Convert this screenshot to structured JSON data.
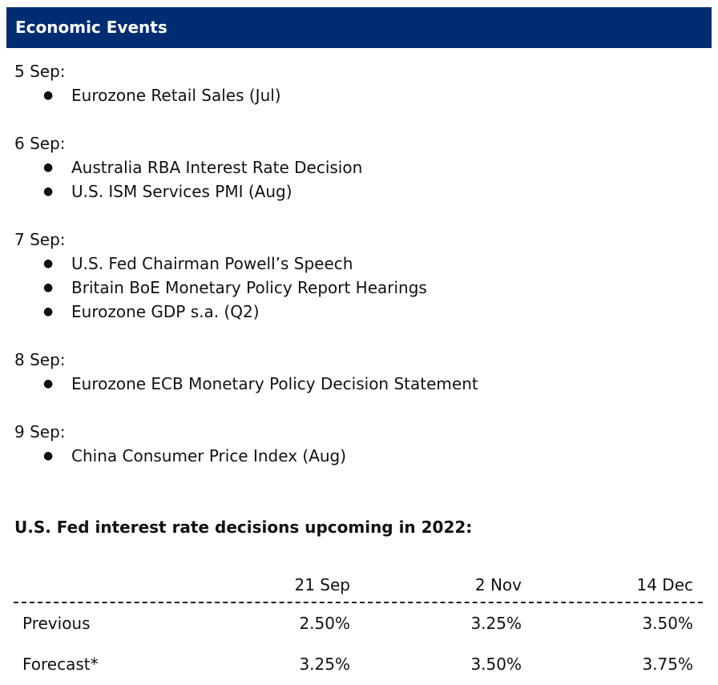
{
  "header": {
    "title": "Economic Events"
  },
  "events": [
    {
      "date": "5 Sep:",
      "items": [
        "Eurozone Retail Sales (Jul)"
      ]
    },
    {
      "date": "6 Sep:",
      "items": [
        "Australia RBA Interest Rate Decision",
        "U.S. ISM Services PMI (Aug)"
      ]
    },
    {
      "date": "7 Sep:",
      "items": [
        "U.S. Fed Chairman Powell’s Speech",
        "Britain BoE Monetary Policy Report Hearings",
        "Eurozone GDP s.a. (Q2)"
      ]
    },
    {
      "date": "8 Sep:",
      "items": [
        "Eurozone ECB Monetary Policy Decision Statement"
      ]
    },
    {
      "date": "9 Sep:",
      "items": [
        "China Consumer Price Index (Aug)"
      ]
    }
  ],
  "bullet_glyph": "●",
  "fed": {
    "title": "U.S. Fed interest rate decisions upcoming in 2022:",
    "columns": [
      "21 Sep",
      "2 Nov",
      "14 Dec"
    ],
    "rows": [
      {
        "label": "Previous",
        "values": [
          "2.50%",
          "3.25%",
          "3.50%"
        ]
      },
      {
        "label": "Forecast*",
        "values": [
          "3.25%",
          "3.50%",
          "3.75%"
        ]
      }
    ]
  },
  "colors": {
    "header_bg": "#002d72",
    "header_text": "#ffffff"
  }
}
